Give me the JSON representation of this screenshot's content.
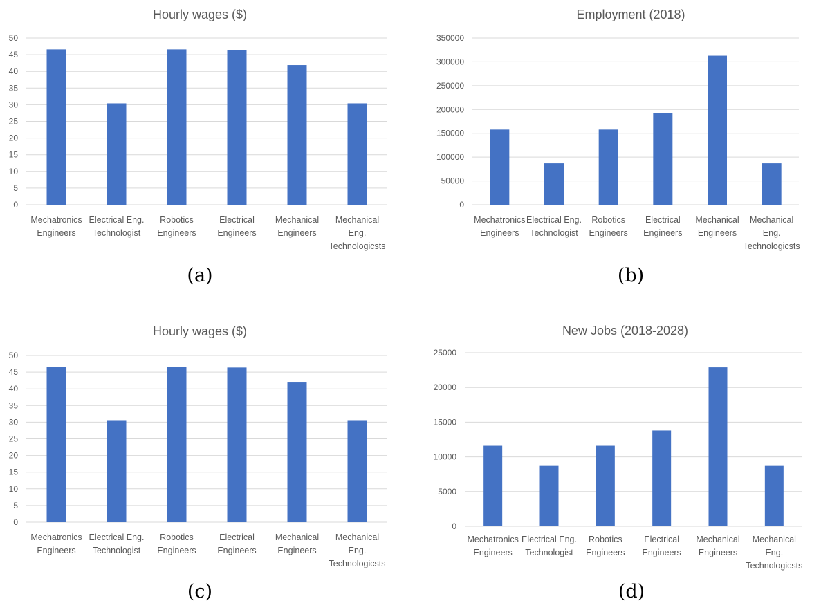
{
  "colors": {
    "bar": "#4472c4",
    "grid": "#d9d9d9",
    "text": "#595959"
  },
  "chart_data": [
    {
      "type": "bar",
      "panel": "(a)",
      "title": "Hourly wages ($)",
      "categories": [
        [
          "Mechatronics",
          "Engineers"
        ],
        [
          "Electrical Eng.",
          "Technologist"
        ],
        [
          "Robotics",
          "Engineers"
        ],
        [
          "Electrical",
          "Engineers"
        ],
        [
          "Mechanical",
          "Engineers"
        ],
        [
          "Mechanical",
          "Eng.",
          "Technologicsts"
        ]
      ],
      "values": [
        46.6,
        30.4,
        46.6,
        46.4,
        41.9,
        30.4
      ],
      "ylim": [
        0,
        50
      ],
      "yticks": [
        0,
        5,
        10,
        15,
        20,
        25,
        30,
        35,
        40,
        45,
        50
      ],
      "grid": true,
      "legend": false
    },
    {
      "type": "bar",
      "panel": "(b)",
      "title": "Employment (2018)",
      "categories": [
        [
          "Mechatronics",
          "Engineers"
        ],
        [
          "Electrical Eng.",
          "Technologist"
        ],
        [
          "Robotics",
          "Engineers"
        ],
        [
          "Electrical",
          "Engineers"
        ],
        [
          "Mechanical",
          "Engineers"
        ],
        [
          "Mechanical",
          "Eng.",
          "Technologicsts"
        ]
      ],
      "values": [
        157800,
        87000,
        157800,
        192300,
        312900,
        87000
      ],
      "ylim": [
        0,
        350000
      ],
      "yticks": [
        0,
        50000,
        100000,
        150000,
        200000,
        250000,
        300000,
        350000
      ],
      "grid": true,
      "legend": false
    },
    {
      "type": "bar",
      "panel": "(c)",
      "title": "Hourly wages ($)",
      "categories": [
        [
          "Mechatronics",
          "Engineers"
        ],
        [
          "Electrical Eng.",
          "Technologist"
        ],
        [
          "Robotics",
          "Engineers"
        ],
        [
          "Electrical",
          "Engineers"
        ],
        [
          "Mechanical",
          "Engineers"
        ],
        [
          "Mechanical",
          "Eng.",
          "Technologicsts"
        ]
      ],
      "values": [
        46.6,
        30.4,
        46.6,
        46.4,
        41.9,
        30.4
      ],
      "ylim": [
        0,
        50
      ],
      "yticks": [
        0,
        5,
        10,
        15,
        20,
        25,
        30,
        35,
        40,
        45,
        50
      ],
      "grid": true,
      "legend": false
    },
    {
      "type": "bar",
      "panel": "(d)",
      "title": "New Jobs (2018-2028)",
      "categories": [
        [
          "Mechatronics",
          "Engineers"
        ],
        [
          "Electrical Eng.",
          "Technologist"
        ],
        [
          "Robotics",
          "Engineers"
        ],
        [
          "Electrical",
          "Engineers"
        ],
        [
          "Mechanical",
          "Engineers"
        ],
        [
          "Mechanical",
          "Eng.",
          "Technologicsts"
        ]
      ],
      "values": [
        11600,
        8700,
        11600,
        13800,
        22900,
        8700
      ],
      "ylim": [
        0,
        25000
      ],
      "yticks": [
        0,
        5000,
        10000,
        15000,
        20000,
        25000
      ],
      "grid": true,
      "legend": false
    }
  ]
}
